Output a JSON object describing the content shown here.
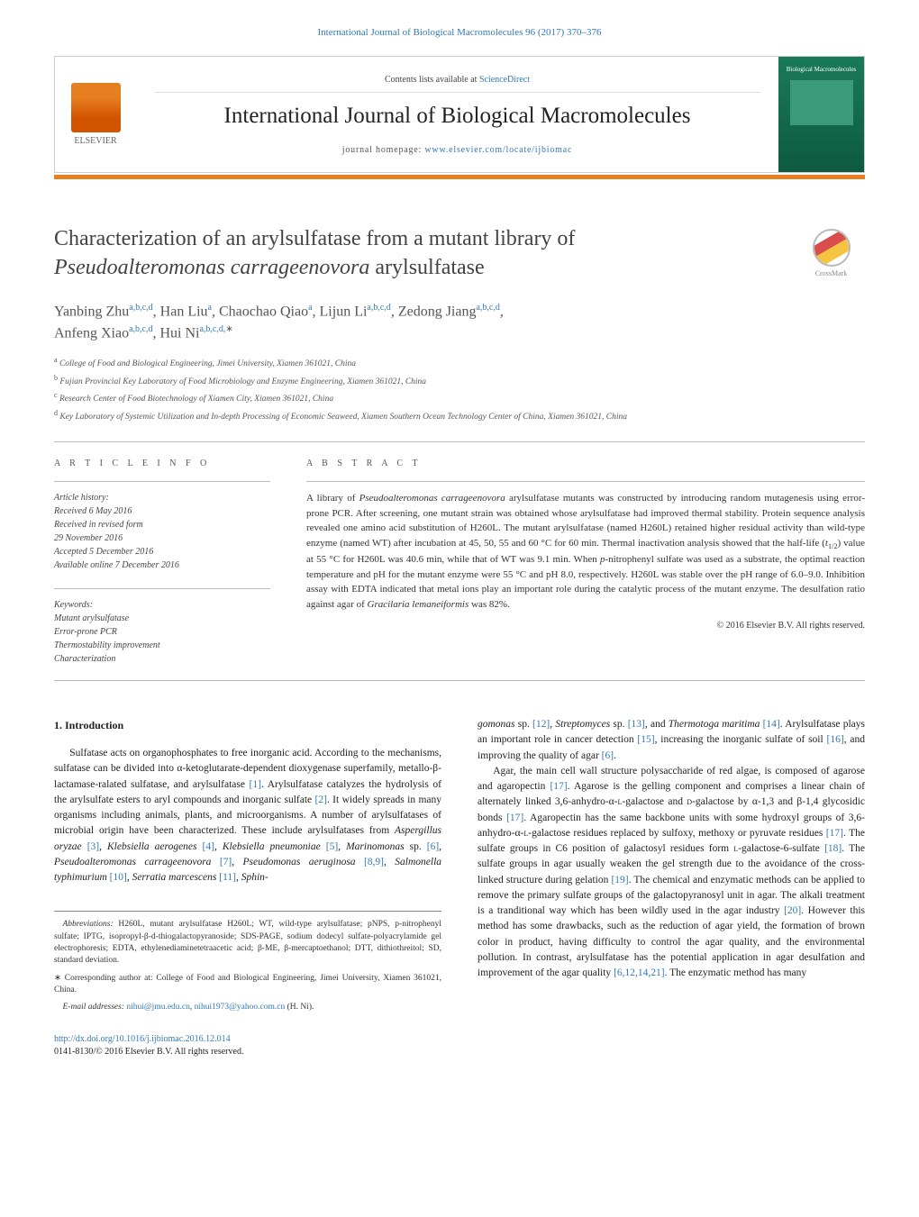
{
  "topLink": "International Journal of Biological Macromolecules 96 (2017) 370–376",
  "header": {
    "elsevier": "ELSEVIER",
    "contentsPrefix": "Contents lists available at ",
    "scienceDirect": "ScienceDirect",
    "journalTitle": "International Journal of Biological Macromolecules",
    "homepagePrefix": "journal homepage: ",
    "homepageUrl": "www.elsevier.com/locate/ijbiomac",
    "coverTop": "Biological Macromolecules"
  },
  "crossmark": "CrossMark",
  "title": {
    "line1": "Characterization of an arylsulfatase from a mutant library of",
    "line2_ital": "Pseudoalteromonas carrageenovora",
    "line2_rest": " arylsulfatase"
  },
  "authors": {
    "a1": "Yanbing Zhu",
    "s1": "a,b,c,d",
    "a2": "Han Liu",
    "s2": "a",
    "a3": "Chaochao Qiao",
    "s3": "a",
    "a4": "Lijun Li",
    "s4": "a,b,c,d",
    "a5": "Zedong Jiang",
    "s5": "a,b,c,d",
    "a6": "Anfeng Xiao",
    "s6": "a,b,c,d",
    "a7": "Hui Ni",
    "s7": "a,b,c,d,",
    "star": "∗"
  },
  "affils": {
    "a": "College of Food and Biological Engineering, Jimei University, Xiamen 361021, China",
    "b": "Fujian Provincial Key Laboratory of Food Microbiology and Enzyme Engineering, Xiamen 361021, China",
    "c": "Research Center of Food Biotechnology of Xiamen City, Xiamen 361021, China",
    "d": "Key Laboratory of Systemic Utilization and In-depth Processing of Economic Seaweed, Xiamen Southern Ocean Technology Center of China, Xiamen 361021, China"
  },
  "labels": {
    "articleInfo": "A R T I C L E    I N F O",
    "abstract": "A B S T R A C T"
  },
  "history": {
    "hd": "Article history:",
    "r1": "Received 6 May 2016",
    "r2": "Received in revised form",
    "r3": "29 November 2016",
    "r4": "Accepted 5 December 2016",
    "r5": "Available online 7 December 2016"
  },
  "keywords": {
    "hd": "Keywords:",
    "k1": "Mutant arylsulfatase",
    "k2": "Error-prone PCR",
    "k3": "Thermostability improvement",
    "k4": "Characterization"
  },
  "abstract": {
    "p1a": "A library of ",
    "p1i1": "Pseudoalteromonas carrageenovora",
    "p1b": " arylsulfatase mutants was constructed by introducing random mutagenesis using error-prone PCR. After screening, one mutant strain was obtained whose arylsulfatase had improved thermal stability. Protein sequence analysis revealed one amino acid substitution of H260L. The mutant arylsulfatase (named H260L) retained higher residual activity than wild-type enzyme (named WT) after incubation at 45, 50, 55 and 60 °C for 60 min. Thermal inactivation analysis showed that the half-life (",
    "p1i2": "t",
    "p1sub": "1/2",
    "p1c": ") value at 55 °C for H260L was 40.6 min, while that of WT was 9.1 min. When ",
    "p1i3": "p",
    "p1d": "-nitrophenyl sulfate was used as a substrate, the optimal reaction temperature and pH for the mutant enzyme were 55 °C and pH 8.0, respectively. H260L was stable over the pH range of 6.0–9.0. Inhibition assay with EDTA indicated that metal ions play an important role during the catalytic process of the mutant enzyme. The desulfation ratio against agar of ",
    "p1i4": "Gracilaria lemaneiformis",
    "p1e": " was 82%.",
    "copyright": "© 2016 Elsevier B.V. All rights reserved."
  },
  "body": {
    "h1": "1.  Introduction",
    "col1": {
      "p1a": "Sulfatase acts on organophosphates to free inorganic acid. According to the mechanisms, sulfatase can be divided into α-ketoglutarate-dependent dioxygenase superfamily, metallo-β-lactamase-ralated sulfatase, and arylsulfatase ",
      "c1": "[1]",
      "p1b": ". Arylsulfatase catalyzes the hydrolysis of the arylsulfate esters to aryl compounds and inorganic sulfate ",
      "c2": "[2]",
      "p1c": ". It widely spreads in many organisms including animals, plants, and microorganisms. A number of arylsulfatases of microbial origin have been characterized. These include arylsulfatases from ",
      "i1": "Aspergillus oryzae",
      "c3": " [3]",
      "s1": ", ",
      "i2": "Klebsiella aerogenes",
      "c4": " [4]",
      "s2": ", ",
      "i3": "Klebsiella pneumoniae",
      "c5": " [5]",
      "s3": ", ",
      "i4": "Marinomonas",
      "s4": " sp. ",
      "c6": "[6]",
      "s5": ", ",
      "i5": "Pseudoalteromonas carrageenovora",
      "c7": " [7]",
      "s6": ", ",
      "i6": "Pseudomonas aeruginosa",
      "c8": " [8,9]",
      "s7": ", ",
      "i7": "Salmonella typhimurium",
      "c9": " [10]",
      "s8": ", ",
      "i8": "Serratia marcescens",
      "c10": " [11]",
      "s9": ", ",
      "i9": "Sphin-"
    },
    "col2": {
      "p0i1": "gomonas",
      "p0s1": " sp. ",
      "p0c1": "[12]",
      "p0s2": ", ",
      "p0i2": "Streptomyces",
      "p0s3": " sp. ",
      "p0c2": "[13]",
      "p0s4": ", and ",
      "p0i3": "Thermotoga maritima",
      "p0c3": " [14]",
      "p0a": ". Arylsulfatase plays an important role in cancer detection ",
      "p0c4": "[15]",
      "p0b": ", increasing the inorganic sulfate of soil ",
      "p0c5": "[16]",
      "p0c": ", and improving the quality of agar ",
      "p0c6": "[6]",
      "p0d": ".",
      "p1a": "Agar, the main cell wall structure polysaccharide of red algae, is composed of agarose and agaropectin ",
      "c17": "[17]",
      "p1b": ". Agarose is the gelling component and comprises a linear chain of alternately linked 3,6-anhydro-α-",
      "sc1": "l",
      "p1c": "-galactose and ",
      "sc2": "d",
      "p1d": "-galactose by α-1,3 and β-1,4 glycosidic bonds ",
      "c17b": "[17]",
      "p1e": ". Agaropectin has the same backbone units with some hydroxyl groups of 3,6-anhydro-α-",
      "sc3": "l",
      "p1f": "-galactose residues replaced by sulfoxy, methoxy or pyruvate residues ",
      "c17c": "[17]",
      "p1g": ". The sulfate groups in C6 position of galactosyl residues form ",
      "sc4": "l",
      "p1h": "-galactose-6-sulfate ",
      "c18": "[18]",
      "p1i": ". The sulfate groups in agar usually weaken the gel strength due to the avoidance of the cross-linked structure during gelation ",
      "c19": "[19]",
      "p1j": ". The chemical and enzymatic methods can be applied to remove the primary sulfate groups of the galactopyranosyl unit in agar. The alkali treatment is a tranditional way which has been wildly used in the agar industry ",
      "c20": "[20]",
      "p1k": ". However this method has some drawbacks, such as the reduction of agar yield, the formation of brown color in product, having difficulty to control the agar quality, and the environmental pollution. In contrast, arylsulfatase has the potential application in agar desulfation and improvement of the agar quality ",
      "c21": "[6,12,14,21]",
      "p1l": ". The enzymatic method has many"
    }
  },
  "footnotes": {
    "abbrevHd": "Abbreviations:",
    "abbrev": " H260L, mutant arylsulfatase H260L; WT, wild-type arylsulfatase; pNPS, p-nitrophenyl sulfate; IPTG, isopropyl-β-d-thiogalactopyranoside; SDS-PAGE, sodium dodecyl sulfate-polyacrylamide gel electrophoresis; EDTA, ethylenediaminetetraacetic acid; β-ME, β-mercaptoethanol; DTT, dithiothreitol; SD, standard deviation.",
    "corr": "∗ Corresponding author at: College of Food and Biological Engineering, Jimei University, Xiamen 361021, China.",
    "emailHd": "E-mail addresses:",
    "email1": " nihui@jmu.edu.cn",
    "emailSep": ", ",
    "email2": "nihui1973@yahoo.com.cn",
    "emailTail": " (H. Ni)."
  },
  "doi": {
    "url": "http://dx.doi.org/10.1016/j.ijbiomac.2016.12.014",
    "issn": "0141-8130/© 2016 Elsevier B.V. All rights reserved."
  },
  "colors": {
    "link": "#3378b8",
    "orange": "#e67e22",
    "green": "#1a7a5a",
    "border": "#bbbbbb",
    "text": "#222222"
  }
}
